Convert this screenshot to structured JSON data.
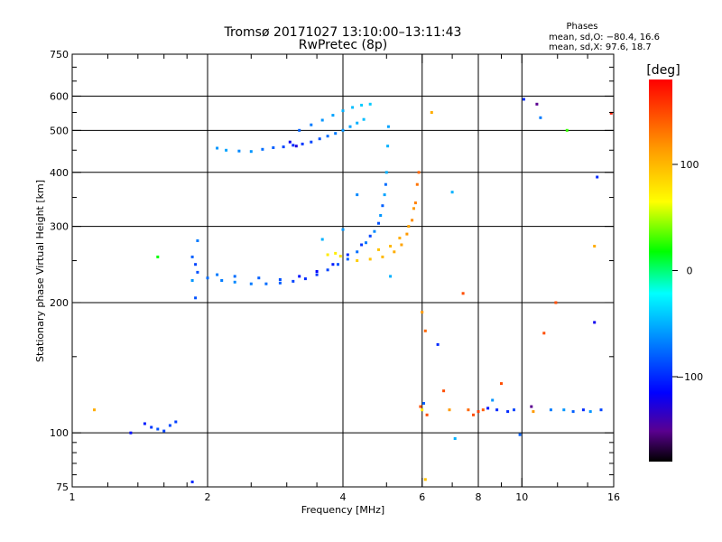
{
  "chart_data": {
    "type": "scatter",
    "title": "Tromsø 20171027 13:10:00–13:11:43",
    "subtitle": "RwPretec (8p)",
    "xlabel": "Frequency [MHz]",
    "ylabel": "Stationary phase Virtual Height [km]",
    "x_scale": "log",
    "y_scale": "log",
    "xlim": [
      1,
      16
    ],
    "ylim": [
      75,
      750
    ],
    "x_ticks": [
      "1",
      "2",
      "4",
      "6",
      "8",
      "10",
      "16"
    ],
    "y_ticks": [
      "75",
      "100",
      "200",
      "300",
      "400",
      "500",
      "600",
      "750"
    ],
    "grid": true,
    "stats": {
      "heading": "Phases",
      "line_o": "mean, sd,O: −80.4, 16.6",
      "line_x": "mean, sd,X:  97.6, 18.7"
    },
    "colorbar": {
      "label": "[deg]",
      "range": [
        -180,
        180
      ],
      "ticks": [
        "100",
        "0",
        "−100"
      ],
      "tick_values": [
        100,
        0,
        -100
      ]
    },
    "series": [
      {
        "points": [
          [
            2.1,
            455,
            -60
          ],
          [
            2.2,
            450,
            -55
          ],
          [
            2.35,
            448,
            -65
          ],
          [
            2.5,
            447,
            -60
          ],
          [
            2.65,
            452,
            -75
          ],
          [
            2.8,
            456,
            -80
          ],
          [
            2.95,
            458,
            -90
          ],
          [
            3.1,
            462,
            -100
          ],
          [
            3.25,
            465,
            -95
          ],
          [
            3.4,
            470,
            -90
          ],
          [
            3.55,
            478,
            -85
          ],
          [
            3.7,
            485,
            -75
          ],
          [
            3.85,
            492,
            -70
          ],
          [
            4.0,
            500,
            -60
          ],
          [
            4.15,
            510,
            -55
          ],
          [
            4.3,
            520,
            -50
          ],
          [
            4.45,
            530,
            -45
          ],
          [
            3.2,
            500,
            -80
          ],
          [
            3.4,
            515,
            -70
          ],
          [
            3.6,
            528,
            -60
          ],
          [
            3.8,
            542,
            -55
          ],
          [
            4.0,
            555,
            -50
          ],
          [
            4.2,
            565,
            -45
          ],
          [
            4.4,
            572,
            -40
          ],
          [
            4.6,
            575,
            -40
          ],
          [
            3.05,
            470,
            -120
          ],
          [
            3.15,
            460,
            -125
          ],
          [
            1.85,
            255,
            -80
          ],
          [
            1.88,
            245,
            -90
          ],
          [
            1.9,
            235,
            -85
          ],
          [
            2.0,
            228,
            -75
          ],
          [
            2.15,
            225,
            -70
          ],
          [
            2.3,
            223,
            -65
          ],
          [
            2.5,
            221,
            -70
          ],
          [
            2.7,
            221,
            -75
          ],
          [
            2.9,
            222,
            -80
          ],
          [
            3.1,
            224,
            -90
          ],
          [
            3.3,
            227,
            -100
          ],
          [
            3.5,
            232,
            -95
          ],
          [
            3.7,
            238,
            -90
          ],
          [
            3.9,
            245,
            -85
          ],
          [
            4.1,
            252,
            -80
          ],
          [
            4.3,
            262,
            -75
          ],
          [
            4.5,
            275,
            -70
          ],
          [
            4.7,
            292,
            -65
          ],
          [
            4.85,
            318,
            -60
          ],
          [
            4.95,
            355,
            -55
          ],
          [
            5.0,
            400,
            -50
          ],
          [
            5.03,
            460,
            -50
          ],
          [
            5.05,
            510,
            -55
          ],
          [
            2.1,
            232,
            -70
          ],
          [
            2.3,
            230,
            -75
          ],
          [
            2.6,
            228,
            -80
          ],
          [
            2.9,
            226,
            -85
          ],
          [
            3.2,
            230,
            -110
          ],
          [
            3.5,
            236,
            -115
          ],
          [
            3.8,
            245,
            -105
          ],
          [
            4.1,
            258,
            -100
          ],
          [
            4.4,
            272,
            -95
          ],
          [
            4.6,
            285,
            -90
          ],
          [
            4.8,
            305,
            -85
          ],
          [
            4.9,
            335,
            -80
          ],
          [
            4.98,
            375,
            -75
          ],
          [
            1.85,
            225,
            -60
          ],
          [
            1.9,
            278,
            -70
          ],
          [
            1.88,
            205,
            -85
          ],
          [
            4.0,
            295,
            -60
          ],
          [
            3.6,
            280,
            -50
          ],
          [
            4.3,
            355,
            -65
          ],
          [
            5.1,
            230,
            -50
          ],
          [
            4.3,
            250,
            95
          ],
          [
            4.6,
            252,
            100
          ],
          [
            4.9,
            255,
            105
          ],
          [
            5.2,
            262,
            110
          ],
          [
            5.4,
            272,
            115
          ],
          [
            5.55,
            288,
            120
          ],
          [
            5.7,
            310,
            125
          ],
          [
            5.8,
            340,
            130
          ],
          [
            5.85,
            375,
            135
          ],
          [
            5.9,
            400,
            140
          ],
          [
            4.8,
            265,
            100
          ],
          [
            5.1,
            270,
            105
          ],
          [
            5.35,
            282,
            110
          ],
          [
            5.6,
            300,
            115
          ],
          [
            5.75,
            330,
            120
          ],
          [
            3.7,
            258,
            80
          ],
          [
            3.85,
            260,
            78
          ],
          [
            3.95,
            256,
            85
          ],
          [
            1.35,
            100,
            -110
          ],
          [
            1.45,
            105,
            -105
          ],
          [
            1.5,
            103,
            -95
          ],
          [
            1.55,
            102,
            -85
          ],
          [
            1.6,
            101,
            -90
          ],
          [
            1.65,
            104,
            -88
          ],
          [
            1.7,
            106,
            -92
          ],
          [
            1.12,
            113,
            110
          ],
          [
            1.55,
            255,
            20
          ],
          [
            1.85,
            77,
            -100
          ],
          [
            5.95,
            115,
            150
          ],
          [
            6.0,
            113,
            80
          ],
          [
            6.05,
            117,
            -80
          ],
          [
            6.15,
            110,
            150
          ],
          [
            6.0,
            190,
            120
          ],
          [
            6.1,
            172,
            140
          ],
          [
            6.5,
            160,
            -100
          ],
          [
            6.7,
            125,
            150
          ],
          [
            6.9,
            113,
            120
          ],
          [
            7.1,
            97,
            -50
          ],
          [
            7.4,
            210,
            150
          ],
          [
            7.6,
            113,
            140
          ],
          [
            7.8,
            110,
            150
          ],
          [
            8.0,
            112,
            155
          ],
          [
            8.2,
            113,
            145
          ],
          [
            8.4,
            114,
            -110
          ],
          [
            8.6,
            119,
            -60
          ],
          [
            8.8,
            113,
            -100
          ],
          [
            9.0,
            130,
            150
          ],
          [
            9.3,
            112,
            -100
          ],
          [
            9.6,
            113,
            -90
          ],
          [
            9.9,
            99,
            -80
          ],
          [
            10.1,
            590,
            -100
          ],
          [
            10.5,
            115,
            -150
          ],
          [
            10.6,
            112,
            120
          ],
          [
            10.8,
            575,
            -150
          ],
          [
            11.0,
            535,
            -70
          ],
          [
            11.2,
            170,
            150
          ],
          [
            11.6,
            113,
            -70
          ],
          [
            11.9,
            200,
            150
          ],
          [
            12.4,
            113,
            -60
          ],
          [
            12.6,
            500,
            30
          ],
          [
            13.0,
            112,
            -80
          ],
          [
            13.7,
            113,
            -100
          ],
          [
            14.2,
            112,
            -60
          ],
          [
            14.5,
            180,
            -120
          ],
          [
            14.7,
            390,
            -100
          ],
          [
            15.0,
            113,
            -90
          ],
          [
            15.8,
            548,
            170
          ],
          [
            6.3,
            550,
            110
          ],
          [
            7.0,
            360,
            -50
          ],
          [
            6.1,
            78,
            100
          ],
          [
            14.5,
            270,
            110
          ]
        ]
      }
    ]
  }
}
